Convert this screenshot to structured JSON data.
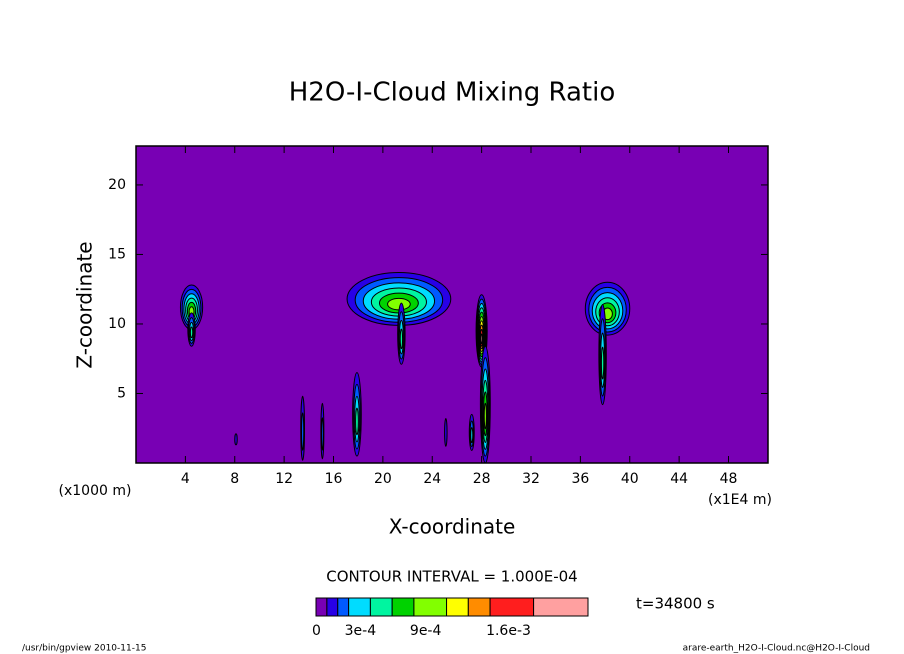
{
  "chart_data": {
    "type": "contour",
    "title": "H2O-I-Cloud Mixing Ratio",
    "x_label": "X-coordinate",
    "y_label": "Z-coordinate",
    "x_unit": "(x1E4 m)",
    "y_unit": "(x1000 m)",
    "xlim": [
      0,
      51.2
    ],
    "xticks": [
      4,
      8,
      12,
      16,
      20,
      24,
      28,
      32,
      36,
      40,
      44,
      48
    ],
    "ylim": [
      0,
      22.8
    ],
    "yticks": [
      5,
      10,
      15,
      20
    ],
    "contour_interval": "CONTOUR INTERVAL = 1.000E-04",
    "time": "t=34800 s",
    "levels": [
      0,
      0.0001,
      0.0002,
      0.0003,
      0.0005,
      0.0007,
      0.0009,
      0.0012,
      0.0014,
      0.0016,
      0.002,
      0.0025
    ],
    "colors": [
      "#7800b4",
      "#2800e6",
      "#005aff",
      "#00dcff",
      "#00f5a0",
      "#00d200",
      "#82ff00",
      "#ffff00",
      "#ff8c00",
      "#ff1e1e",
      "#ffa0a0"
    ],
    "colorbar_ticks": [
      {
        "value": 0,
        "label": "0"
      },
      {
        "value": 0.0003,
        "label": "3e-4"
      },
      {
        "value": 0.0009,
        "label": "9e-4"
      },
      {
        "value": 0.0016,
        "label": "1.6e-3"
      }
    ],
    "cells": [
      {
        "x": 4.5,
        "z": 11.2,
        "dx": 0.9,
        "dz": 1.6,
        "peak": 0.0009
      },
      {
        "x": 4.5,
        "z": 9.6,
        "dx": 0.3,
        "dz": 1.2,
        "peak": 0.0005
      },
      {
        "x": 21.3,
        "z": 11.8,
        "dx": 4.2,
        "dz": 1.9,
        "peak": 0.0009
      },
      {
        "x": 21.5,
        "z": 9.3,
        "dx": 0.3,
        "dz": 2.2,
        "peak": 0.0005
      },
      {
        "x": 38.2,
        "z": 11.1,
        "dx": 1.8,
        "dz": 1.9,
        "peak": 0.0009
      },
      {
        "x": 37.8,
        "z": 7.8,
        "dx": 0.3,
        "dz": 3.6,
        "peak": 0.0005
      },
      {
        "x": 28.0,
        "z": 9.5,
        "dx": 0.45,
        "dz": 2.6,
        "peak": 0.002
      },
      {
        "x": 28.3,
        "z": 4.2,
        "dx": 0.4,
        "dz": 4.2,
        "peak": 0.0009
      },
      {
        "x": 27.2,
        "z": 2.2,
        "dx": 0.2,
        "dz": 1.3,
        "peak": 0.0003
      },
      {
        "x": 17.9,
        "z": 3.5,
        "dx": 0.35,
        "dz": 3.0,
        "peak": 0.0005
      },
      {
        "x": 13.5,
        "z": 2.5,
        "dx": 0.15,
        "dz": 2.3,
        "peak": 0.0002
      },
      {
        "x": 15.1,
        "z": 2.3,
        "dx": 0.12,
        "dz": 2.0,
        "peak": 0.0002
      },
      {
        "x": 8.1,
        "z": 1.7,
        "dx": 0.1,
        "dz": 0.4,
        "peak": 0.0001
      },
      {
        "x": 25.1,
        "z": 2.2,
        "dx": 0.1,
        "dz": 1.0,
        "peak": 0.0001
      }
    ],
    "footer_left": "/usr/bin/gpview  2010-11-15",
    "footer_right": "arare-earth_H2O-I-Cloud.nc@H2O-I-Cloud"
  }
}
